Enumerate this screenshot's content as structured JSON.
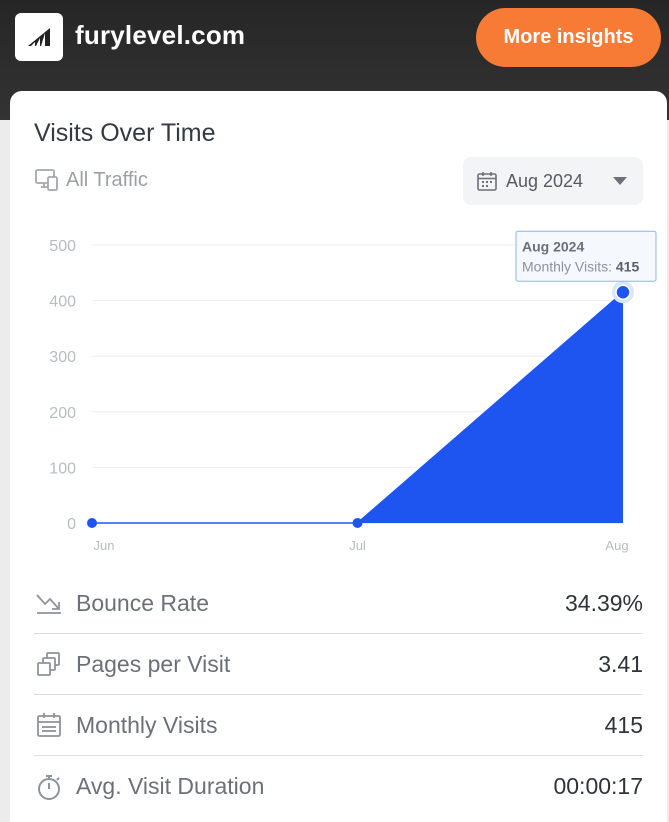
{
  "header": {
    "site_name": "furylevel.com",
    "cta_label": "More insights",
    "cta_color": "#f77a35",
    "logo_icon": "stairs-logo-icon"
  },
  "card": {
    "title": "Visits Over Time",
    "traffic_label": "All Traffic",
    "traffic_icon": "devices-icon",
    "date_selected": "Aug 2024"
  },
  "chart_data": {
    "type": "area",
    "categories": [
      "Jun",
      "Jul",
      "Aug"
    ],
    "values": [
      0,
      0,
      415
    ],
    "yticks": [
      "0",
      "100",
      "200",
      "300",
      "400",
      "500"
    ],
    "ylim": [
      0,
      500
    ],
    "series_color": "#1e55f0",
    "tooltip": {
      "title": "Aug 2024",
      "label": "Monthly Visits:",
      "value": "415"
    }
  },
  "metrics": [
    {
      "icon": "trend-arrows-icon",
      "label": "Bounce Rate",
      "value": "34.39%"
    },
    {
      "icon": "stacked-pages-icon",
      "label": "Pages per Visit",
      "value": "3.41"
    },
    {
      "icon": "calendar-icon",
      "label": "Monthly Visits",
      "value": "415"
    },
    {
      "icon": "stopwatch-icon",
      "label": "Avg. Visit Duration",
      "value": "00:00:17"
    }
  ]
}
